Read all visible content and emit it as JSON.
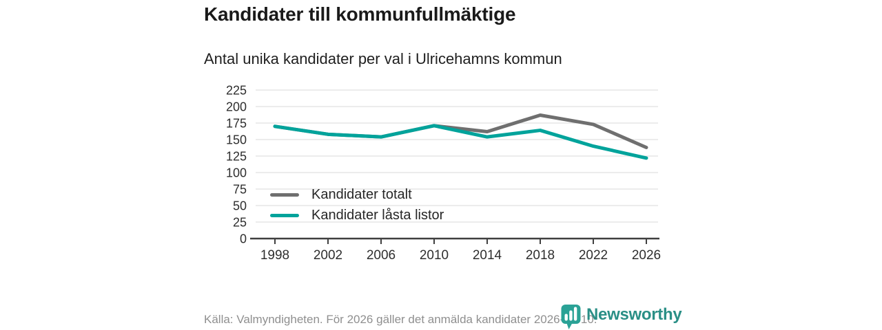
{
  "header": {
    "title": "Kandidater till kommunfullmäktige",
    "subtitle": "Antal unika kandidater per val i Ulricehamns kommun"
  },
  "chart_data": {
    "type": "line",
    "categories": [
      "1998",
      "2002",
      "2006",
      "2010",
      "2014",
      "2018",
      "2022",
      "2026"
    ],
    "series": [
      {
        "name": "Kandidater totalt",
        "color": "#6f6f6f",
        "values": [
          170,
          158,
          154,
          171,
          162,
          187,
          173,
          138
        ]
      },
      {
        "name": "Kandidater låsta listor",
        "color": "#00a39b",
        "values": [
          170,
          158,
          154,
          171,
          154,
          164,
          140,
          122
        ]
      }
    ],
    "title": "Kandidater till kommunfullmäktige",
    "subtitle": "Antal unika kandidater per val i Ulricehamns kommun",
    "xlabel": "",
    "ylabel": "",
    "ylim": [
      0,
      225
    ],
    "ytick_step": 25,
    "ytick_labels": [
      "0",
      "25",
      "50",
      "75",
      "100",
      "125",
      "150",
      "175",
      "200",
      "225"
    ],
    "grid": true,
    "legend_position": "inside-left-bottom"
  },
  "footer": {
    "source": "Källa: Valmyndigheten. För 2026 gäller det anmälda kandidater 2026-04-10."
  },
  "branding": {
    "name": "Newsworthy",
    "logo_icon": "bar-chart-pin-icon",
    "color": "#2a8f86",
    "icon_color": "#2aa296"
  },
  "colors": {
    "axis": "#3f3f3f",
    "tick_label": "#2e2e2e",
    "gridline": "#e0e0e0",
    "footer_text": "#8f8f8f",
    "background": "#ffffff"
  }
}
